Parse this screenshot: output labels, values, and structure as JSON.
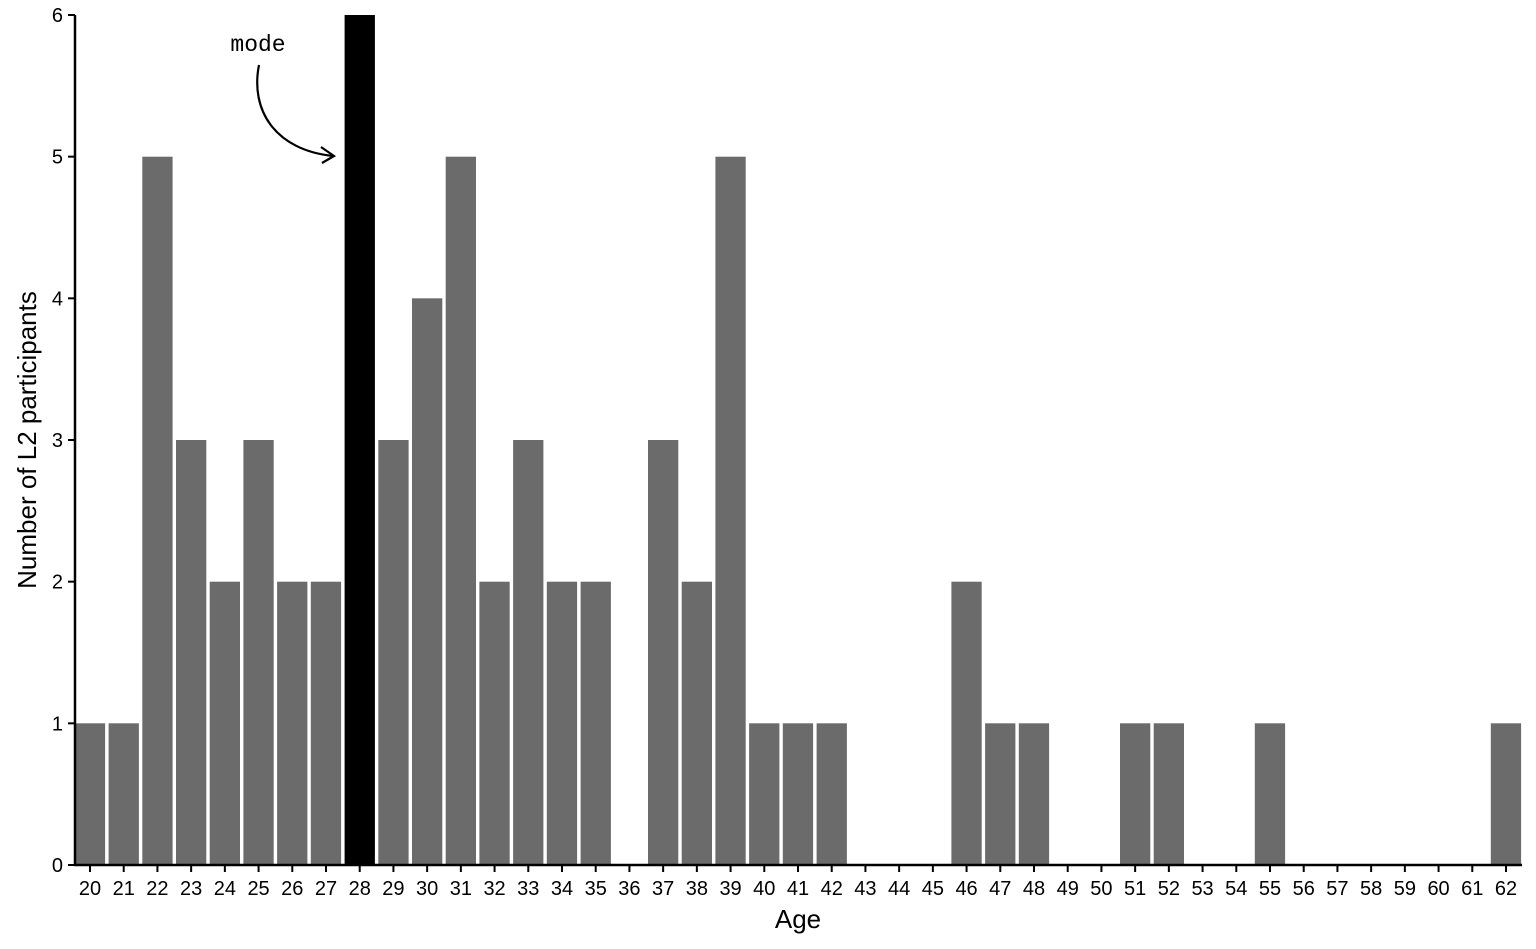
{
  "chart_data": {
    "type": "bar",
    "title": "",
    "xlabel": "Age",
    "ylabel": "Number of L2 participants",
    "ylim": [
      0,
      6
    ],
    "yticks": [
      0,
      1,
      2,
      3,
      4,
      5,
      6
    ],
    "grid": false,
    "legend": null,
    "categories": [
      20,
      21,
      22,
      23,
      24,
      25,
      26,
      27,
      28,
      29,
      30,
      31,
      32,
      33,
      34,
      35,
      36,
      37,
      38,
      39,
      40,
      41,
      42,
      43,
      44,
      45,
      46,
      47,
      48,
      49,
      50,
      51,
      52,
      53,
      54,
      55,
      56,
      57,
      58,
      59,
      60,
      61,
      62
    ],
    "values": [
      1,
      1,
      5,
      3,
      2,
      3,
      2,
      2,
      6,
      3,
      4,
      5,
      2,
      3,
      2,
      2,
      0,
      3,
      2,
      5,
      1,
      1,
      1,
      0,
      0,
      0,
      2,
      1,
      1,
      0,
      0,
      1,
      1,
      0,
      0,
      1,
      0,
      0,
      0,
      0,
      0,
      0,
      1
    ],
    "highlight": {
      "category": 28,
      "value": 6,
      "color": "#000000"
    },
    "bar_color": "#6b6b6b",
    "annotations": [
      {
        "text": "mode",
        "points_to": 28,
        "style": "curved-arrow"
      }
    ]
  }
}
